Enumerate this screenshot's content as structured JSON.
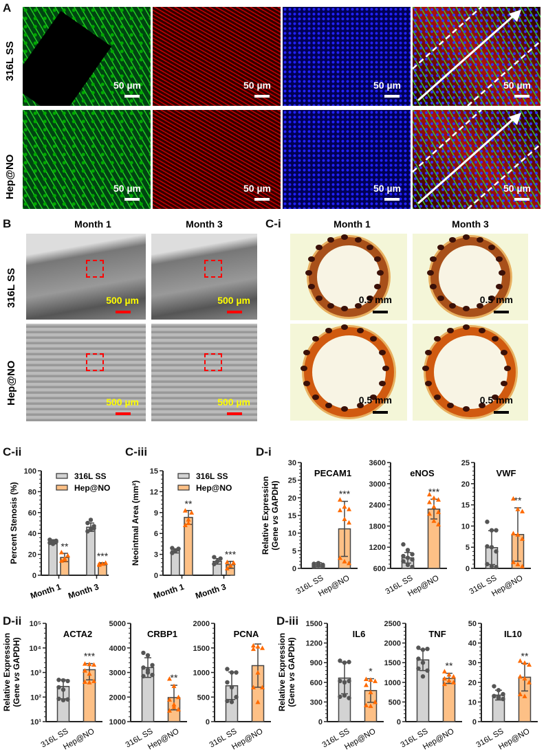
{
  "panels": {
    "A": {
      "label": "A",
      "rows": [
        "316L SS",
        "Hep@NO"
      ],
      "scale_bar": "50 µm"
    },
    "B": {
      "label": "B",
      "columns": [
        "Month 1",
        "Month 3"
      ],
      "rows": [
        "316L SS",
        "Hep@NO"
      ],
      "scale_bar": "500 µm"
    },
    "Ci": {
      "label": "C-i",
      "columns": [
        "Month 1",
        "Month 3"
      ],
      "scale_bar": "0.5 mm"
    },
    "Cii": {
      "label": "C-ii"
    },
    "Ciii": {
      "label": "C-iii"
    },
    "Di": {
      "label": "D-i"
    },
    "Dii": {
      "label": "D-ii"
    },
    "Diii": {
      "label": "D-iii"
    }
  },
  "colors": {
    "control": "#d3d3d3",
    "treatment": "#fdc086",
    "control_points": "#555555",
    "treatment_points": "#ff6a00",
    "scale_bar_sem": "#ff0000",
    "scale_text_sem": "#ffff00"
  },
  "chart_data": [
    {
      "id": "Cii",
      "type": "bar",
      "ylabel": "Percent Stenosis (%)",
      "ylim": [
        0,
        100
      ],
      "yticks": [
        0,
        20,
        40,
        60,
        80,
        100
      ],
      "categories": [
        "Month 1",
        "Month 3"
      ],
      "legend": [
        "316L SS",
        "Hep@NO"
      ],
      "legend_position": "top-left",
      "series": [
        {
          "name": "316L SS",
          "values": [
            32,
            46
          ],
          "sd": [
            2,
            4
          ],
          "points": [
            [
              31,
              32,
              33,
              34,
              30,
              32
            ],
            [
              42,
              44,
              47,
              50,
              53,
              45
            ]
          ]
        },
        {
          "name": "Hep@NO",
          "values": [
            17,
            11
          ],
          "sd": [
            4,
            1
          ],
          "points": [
            [
              14,
              16,
              19,
              22,
              15
            ],
            [
              10,
              11,
              12,
              11
            ]
          ]
        }
      ],
      "significance": [
        "**",
        "***"
      ]
    },
    {
      "id": "Ciii",
      "type": "bar",
      "ylabel": "Neointmal Area (mm²)",
      "ylim": [
        0,
        15
      ],
      "yticks": [
        0,
        3,
        6,
        9,
        12,
        15
      ],
      "categories": [
        "Month 1",
        "Month 3"
      ],
      "legend": [
        "316L SS",
        "Hep@NO"
      ],
      "legend_position": "top-left",
      "series": [
        {
          "name": "316L SS",
          "values": [
            3.5,
            2.0
          ],
          "sd": [
            0.3,
            0.4
          ],
          "points": [
            [
              3.2,
              3.5,
              3.8,
              3.9
            ],
            [
              1.6,
              2.0,
              2.4,
              2.6
            ]
          ]
        },
        {
          "name": "Hep@NO",
          "values": [
            8.3,
            1.5
          ],
          "sd": [
            1.0,
            0.5
          ],
          "points": [
            [
              7.2,
              8.0,
              9.0,
              9.3,
              7.5
            ],
            [
              1.0,
              1.4,
              1.8,
              1.9
            ]
          ]
        }
      ],
      "significance": [
        "**",
        "***"
      ]
    },
    {
      "id": "PECAM1",
      "type": "bar",
      "title": "PECAM1",
      "ylim": [
        0,
        30
      ],
      "yticks": [
        0,
        5,
        10,
        15,
        20,
        25,
        30
      ],
      "categories": [
        "316L SS",
        "Hep@NO"
      ],
      "values": [
        1.0,
        11.2
      ],
      "sd": [
        0.6,
        7.8
      ],
      "points": [
        [
          0.5,
          0.8,
          1.0,
          1.3,
          1.5,
          0.6,
          0.9,
          1.4
        ],
        [
          19.5,
          17.5,
          16.8,
          16.5,
          14,
          13,
          3,
          2,
          1.5
        ]
      ],
      "significance": "***"
    },
    {
      "id": "eNOS",
      "type": "bar",
      "title": "eNOS",
      "ylim": [
        600,
        3600
      ],
      "yticks": [
        600,
        1200,
        1800,
        2400,
        3000,
        3600
      ],
      "categories": [
        "316L SS",
        "Hep@NO"
      ],
      "values": [
        900,
        2280
      ],
      "sd": [
        150,
        280
      ],
      "points": [
        [
          1280,
          1120,
          1000,
          950,
          900,
          850,
          800,
          700,
          640
        ],
        [
          2700,
          2600,
          2550,
          2480,
          2350,
          2200,
          2150,
          1950,
          1850
        ]
      ],
      "significance": "***"
    },
    {
      "id": "VWF",
      "type": "bar",
      "title": "VWF",
      "ylim": [
        0,
        25
      ],
      "yticks": [
        0,
        5,
        10,
        15,
        20,
        25
      ],
      "categories": [
        "316L SS",
        "Hep@NO"
      ],
      "values": [
        4.9,
        8.0
      ],
      "sd": [
        4,
        6.3
      ],
      "points": [
        [
          11,
          9,
          9,
          5.2,
          5,
          4,
          1,
          0.5,
          0.3
        ],
        [
          16.5,
          14,
          13.5,
          8.3,
          8,
          7,
          1.5,
          1,
          0.5
        ]
      ],
      "significance": "**"
    },
    {
      "id": "ACTA2",
      "type": "bar",
      "title": "ACTA2",
      "yscale": "log",
      "ylim": [
        10,
        100000
      ],
      "yticks": [
        10,
        100,
        1000,
        10000,
        100000
      ],
      "ytick_labels": [
        "10¹",
        "10²",
        "10³",
        "10⁴",
        "10⁵"
      ],
      "categories": [
        "316L SS",
        "Hep@NO"
      ],
      "values": [
        270,
        1300
      ],
      "err_low": [
        85,
        500
      ],
      "err_high": [
        500,
        2300
      ],
      "points": [
        [
          500,
          480,
          450,
          250,
          200,
          80,
          85,
          75
        ],
        [
          2300,
          2200,
          2100,
          1200,
          900,
          450,
          420,
          400
        ]
      ],
      "significance": "***"
    },
    {
      "id": "CRBP1",
      "type": "bar",
      "title": "CRBP1",
      "ylim": [
        1000,
        5000
      ],
      "yticks": [
        1000,
        2000,
        3000,
        4000,
        5000
      ],
      "categories": [
        "316L SS",
        "Hep@NO"
      ],
      "values": [
        3200,
        1980
      ],
      "sd": [
        400,
        500
      ],
      "points": [
        [
          3800,
          3700,
          3300,
          3200,
          3000,
          2900,
          2850,
          3100
        ],
        [
          2750,
          2450,
          2000,
          1900,
          1700,
          1500,
          1450,
          1600
        ]
      ],
      "significance": "**"
    },
    {
      "id": "PCNA",
      "type": "bar",
      "title": "PCNA",
      "ylim": [
        0,
        2000
      ],
      "yticks": [
        0,
        500,
        1000,
        1500,
        2000
      ],
      "categories": [
        "316L SS",
        "Hep@NO"
      ],
      "values": [
        730,
        1140
      ],
      "sd": [
        280,
        440
      ],
      "points": [
        [
          1070,
          1000,
          1000,
          800,
          700,
          500,
          420,
          400
        ],
        [
          1550,
          1530,
          1500,
          1480,
          1000,
          700,
          700,
          400
        ]
      ],
      "significance": ""
    },
    {
      "id": "IL6",
      "type": "bar",
      "title": "IL6",
      "ylim": [
        0,
        1500
      ],
      "yticks": [
        0,
        300,
        600,
        900,
        1200,
        1500
      ],
      "categories": [
        "316L SS",
        "Hep@NO"
      ],
      "values": [
        665,
        475
      ],
      "sd": [
        240,
        180
      ],
      "points": [
        [
          930,
          900,
          910,
          620,
          600,
          620,
          380,
          400,
          360
        ],
        [
          650,
          640,
          620,
          560,
          450,
          300,
          250,
          240
        ]
      ],
      "significance": "*"
    },
    {
      "id": "TNF",
      "type": "bar",
      "title": "TNF",
      "ylim": [
        0,
        2500
      ],
      "yticks": [
        0,
        500,
        1000,
        1500,
        2000,
        2500
      ],
      "categories": [
        "316L SS",
        "Hep@NO"
      ],
      "values": [
        1570,
        1100
      ],
      "sd": [
        270,
        130
      ],
      "points": [
        [
          1880,
          1830,
          1850,
          1600,
          1500,
          1300,
          1350,
          1150
        ],
        [
          1280,
          1200,
          1150,
          1100,
          1050,
          1000,
          960
        ]
      ],
      "significance": "**"
    },
    {
      "id": "IL10",
      "type": "bar",
      "title": "IL10",
      "ylim": [
        0,
        50
      ],
      "yticks": [
        0,
        10,
        20,
        30,
        40,
        50
      ],
      "categories": [
        "316L SS",
        "Hep@NO"
      ],
      "values": [
        13.5,
        22.6
      ],
      "sd": [
        2.5,
        7
      ],
      "points": [
        [
          18,
          16,
          14,
          13,
          12,
          11.5,
          13,
          12.5
        ],
        [
          31,
          30,
          29,
          23,
          22,
          20,
          14,
          13
        ]
      ],
      "significance": "**"
    }
  ],
  "gene_ylabel": {
    "line1": "Relative Expression",
    "line2_pre": "(Gene ",
    "line2_vs": "vs",
    "line2_post": " GAPDH)"
  }
}
